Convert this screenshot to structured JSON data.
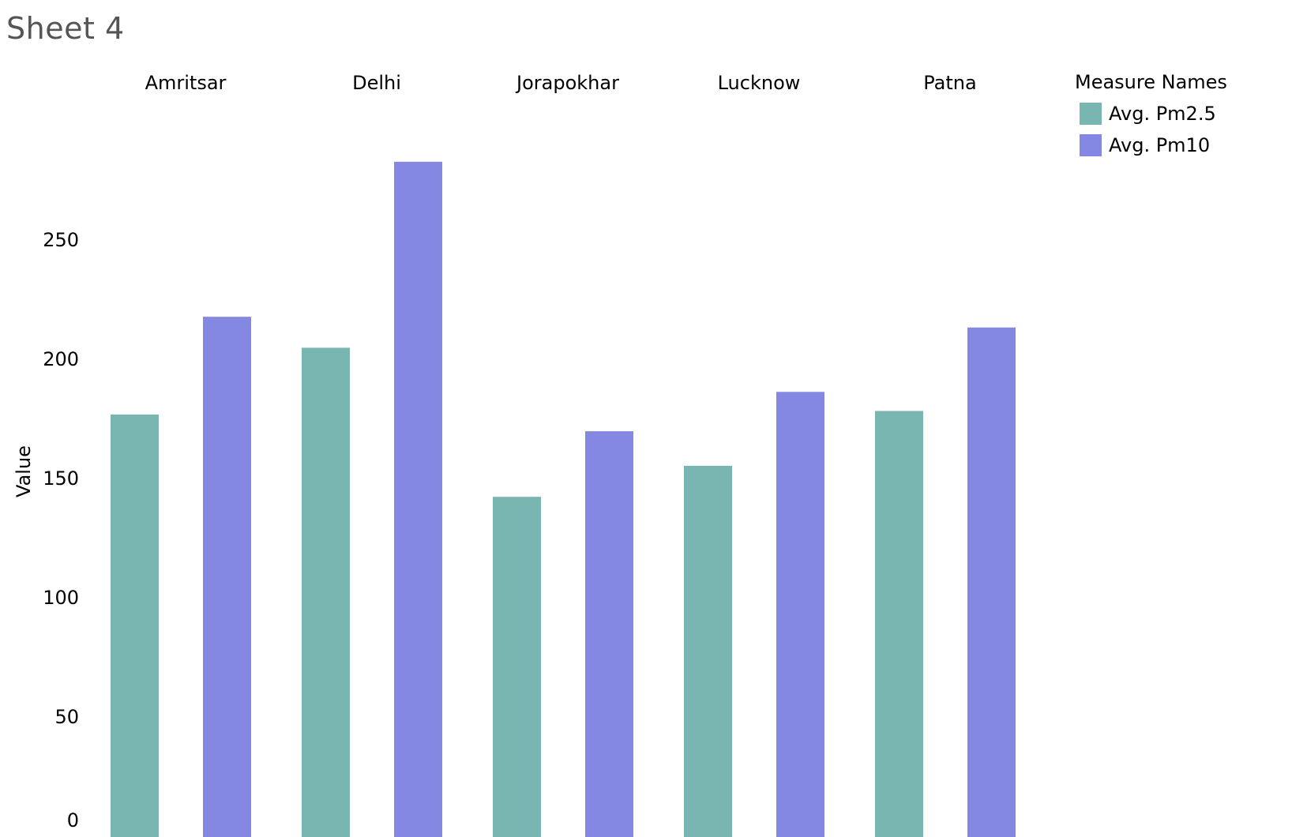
{
  "sheet": {
    "title": "Sheet 4"
  },
  "legend": {
    "title": "Measure Names",
    "items": [
      {
        "label": "Avg. Pm2.5",
        "color": "#7AB6B1"
      },
      {
        "label": "Avg. Pm10",
        "color": "#8588E2"
      }
    ]
  },
  "chart_data": {
    "type": "bar",
    "title": "",
    "xlabel": "",
    "ylabel": "Value",
    "categories": [
      "Amritsar",
      "Delhi",
      "Jorapokhar",
      "Lucknow",
      "Patna"
    ],
    "series": [
      {
        "name": "Avg. Pm2.5",
        "color": "#7AB6B1",
        "values": [
          176.5,
          204.5,
          142,
          155,
          178
        ]
      },
      {
        "name": "Avg. Pm10",
        "color": "#8588E2",
        "values": [
          217.5,
          282.5,
          169.5,
          186,
          213
        ]
      }
    ],
    "y_ticks": [
      "0",
      "50",
      "100",
      "150",
      "200",
      "250"
    ],
    "y_tick_values": [
      0,
      50,
      100,
      150,
      200,
      250
    ],
    "ylim": [
      0,
      305
    ],
    "grid": false,
    "legend_position": "top-right"
  }
}
